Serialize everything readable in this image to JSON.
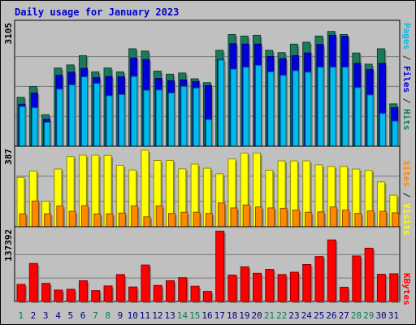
{
  "chart_data": {
    "type": "bar",
    "title": "Daily usage for January 2023",
    "categories": [
      "1",
      "2",
      "3",
      "4",
      "5",
      "6",
      "7",
      "8",
      "9",
      "10",
      "11",
      "12",
      "13",
      "14",
      "15",
      "16",
      "17",
      "18",
      "19",
      "20",
      "21",
      "22",
      "23",
      "24",
      "25",
      "26",
      "27",
      "28",
      "29",
      "30",
      "31"
    ],
    "weekend_days": [
      "1",
      "7",
      "8",
      "14",
      "15",
      "21",
      "22",
      "28",
      "29"
    ],
    "panels": [
      {
        "name": "hits-files-pages",
        "ymax_label": "3105",
        "ylim": [
          0,
          3105
        ],
        "right_labels": [
          {
            "text": "Pages",
            "color": "#00bbee"
          },
          {
            "text": " / ",
            "color": "#222222"
          },
          {
            "text": "Files",
            "color": "#0000dd"
          },
          {
            "text": " / ",
            "color": "#222222"
          },
          {
            "text": "Hits",
            "color": "#1a7a5a"
          }
        ],
        "series": [
          {
            "name": "Hits",
            "color": "#1a7a5a",
            "values": [
              1270,
              1550,
              820,
              2030,
              2110,
              2350,
              1930,
              2030,
              1930,
              2530,
              2470,
              1950,
              1870,
              1900,
              1750,
              1650,
              2490,
              2900,
              2860,
              2880,
              2490,
              2430,
              2650,
              2700,
              2860,
              2980,
              2900,
              2420,
              2130,
              2530,
              1100
            ]
          },
          {
            "name": "Files",
            "color": "#0000dd",
            "values": [
              1090,
              1380,
              700,
              1840,
              1920,
              2020,
              1780,
              1810,
              1800,
              2290,
              2250,
              1760,
              1700,
              1720,
              1680,
              1570,
              2250,
              2660,
              2650,
              2650,
              2330,
              2270,
              2350,
              2420,
              2640,
              2880,
              2850,
              2150,
              1990,
              2150,
              1000
            ]
          },
          {
            "name": "Pages",
            "color": "#00bbee",
            "values": [
              1030,
              1000,
              620,
              1480,
              1590,
              1800,
              1630,
              1310,
              1340,
              1810,
              1450,
              1460,
              1380,
              1550,
              1510,
              690,
              2240,
              2000,
              2050,
              2100,
              1930,
              1840,
              1960,
              1920,
              2050,
              2050,
              2050,
              1520,
              1330,
              850,
              650
            ]
          }
        ]
      },
      {
        "name": "visits-sites",
        "ymax_label": "387",
        "ylim": [
          0,
          387
        ],
        "right_labels": [
          {
            "text": "Sites",
            "color": "#ff8800"
          },
          {
            "text": " / ",
            "color": "#222222"
          },
          {
            "text": "Visits",
            "color": "#ffff00"
          }
        ],
        "series": [
          {
            "name": "Visits",
            "color": "#ffff00",
            "values": [
              250,
              282,
              128,
              292,
              355,
              362,
              362,
              361,
              311,
              287,
              387,
              335,
              335,
              293,
              317,
              296,
              268,
              343,
              373,
              373,
              286,
              333,
              333,
              333,
              313,
              305,
              305,
              292,
              285,
              227,
              160
            ]
          },
          {
            "name": "Sites",
            "color": "#ff8800",
            "values": [
              65,
              130,
              65,
              105,
              78,
              106,
              65,
              65,
              69,
              105,
              50,
              105,
              67,
              73,
              73,
              67,
              120,
              95,
              110,
              100,
              95,
              93,
              84,
              73,
              75,
              100,
              84,
              67,
              80,
              78,
              70
            ]
          }
        ]
      },
      {
        "name": "kbytes",
        "ymax_label": "137392",
        "ylim": [
          0,
          137392
        ],
        "right_labels": [
          {
            "text": "KBytes",
            "color": "#ff0000"
          }
        ],
        "series": [
          {
            "name": "KBytes",
            "color": "#ff0000",
            "values": [
              33000,
              73500,
              35000,
              22000,
              23500,
              40000,
              21000,
              30000,
              52000,
              28000,
              70500,
              31000,
              40000,
              46000,
              29500,
              19500,
              136000,
              51000,
              67000,
              54500,
              62000,
              52000,
              56500,
              71500,
              87000,
              119000,
              27500,
              88000,
              103000,
              52500,
              53500
            ]
          }
        ]
      }
    ]
  }
}
